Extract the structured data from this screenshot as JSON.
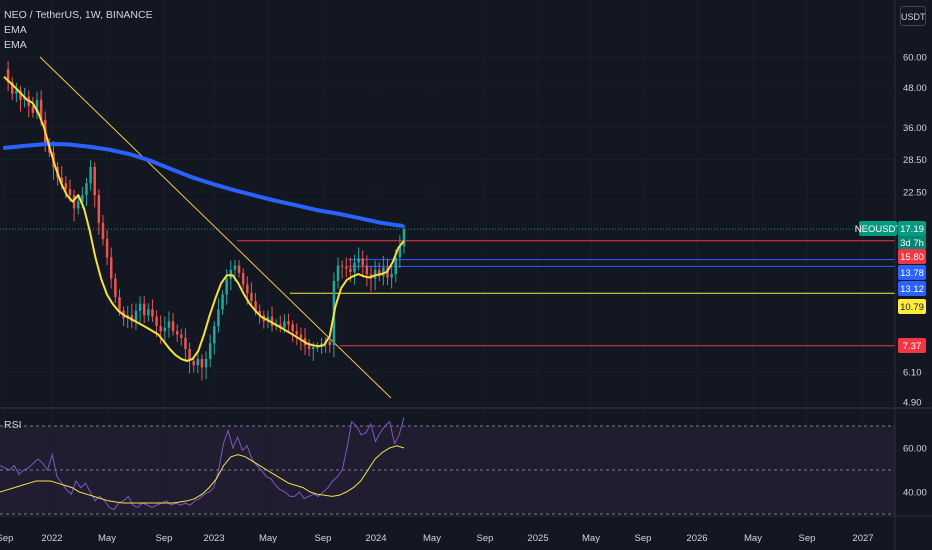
{
  "header": {
    "symbol_line": "NEO / TetherUS, 1W, BINANCE",
    "indicator_1": "EMA",
    "indicator_2": "EMA"
  },
  "currency_button": "USDT",
  "rsi_label": "RSI",
  "colors": {
    "up": "#26a69a",
    "down": "#ef5350",
    "ema_fast": "#f7e03c",
    "ema_slow": "#2962ff",
    "resistance": "#f23645",
    "support_blue": "#2962ff",
    "support_yellow": "#ffeb3b",
    "trendline": "#f5c842",
    "rsi_line": "#7e57c2",
    "rsi_ma": "#f5e050",
    "rsi_band": "#1f1d2f"
  },
  "chart_data": {
    "type": "candlestick",
    "scale": "log",
    "price_axis_ticks": [
      "60.00",
      "48.00",
      "36.00",
      "28.50",
      "22.50",
      "6.10",
      "4.90"
    ],
    "time_axis_ticks": [
      "Sep",
      "2022",
      "May",
      "Sep",
      "2023",
      "May",
      "Sep",
      "2024",
      "May",
      "Sep",
      "2025",
      "May",
      "Sep",
      "2026",
      "May",
      "Sep",
      "2027"
    ],
    "price_labels": [
      {
        "text": "NEOUSDT",
        "value": "17.19",
        "sub": "3d 7h",
        "color": "#089981"
      },
      {
        "text": "",
        "value": "15.80",
        "color": "#f23645"
      },
      {
        "text": "",
        "value": "13.78",
        "color": "#2962ff"
      },
      {
        "text": "",
        "value": "13.12",
        "color": "#2962ff"
      },
      {
        "text": "",
        "value": "10.79",
        "color": "#ffeb3b"
      },
      {
        "text": "",
        "value": "7.37",
        "color": "#f23645"
      }
    ],
    "horizontal_levels": [
      15.8,
      13.78,
      13.12,
      10.79,
      7.37
    ],
    "last_price": 17.19,
    "candle_path": [
      55,
      50,
      46,
      47,
      44,
      45,
      42,
      40,
      44,
      38,
      32,
      30,
      27,
      25,
      24,
      23,
      22,
      20,
      21,
      22,
      24,
      27,
      22,
      18,
      16,
      14,
      12,
      10.5,
      9.5,
      9,
      9.2,
      8.8,
      9.5,
      10,
      9.2,
      9.6,
      9.1,
      8.5,
      8.2,
      8.4,
      8.8,
      8.2,
      8,
      7.8,
      7.2,
      6.6,
      6.4,
      6.7,
      6.3,
      6.7,
      7.5,
      8.5,
      9.6,
      10.7,
      12,
      12.8,
      13.2,
      12.5,
      11.5,
      10.8,
      10.2,
      9.5,
      9.2,
      8.8,
      9.1,
      8.5,
      8.6,
      8.4,
      8.8,
      8.6,
      8.2,
      8,
      7.8,
      7.4,
      7.2,
      7.3,
      7.3,
      7.5,
      7.6,
      7.4,
      11.8,
      13.2,
      13.1,
      12.9,
      12.6,
      13.5,
      13.9,
      13.2,
      12.4,
      12,
      12.8,
      12.2,
      13,
      12.1,
      12.4,
      14,
      15.2,
      17.19
    ],
    "ema_fast_path": [
      52,
      50,
      48,
      46,
      44,
      43,
      40,
      36,
      31,
      27,
      24,
      22,
      21,
      22,
      20,
      17,
      14,
      12,
      10.7,
      10,
      9.5,
      9.2,
      9,
      8.8,
      8.6,
      8.4,
      8.2,
      8,
      7.6,
      7.2,
      6.9,
      6.7,
      6.6,
      6.7,
      7.1,
      8,
      9.2,
      10.4,
      11.6,
      12.3,
      12.3,
      11.6,
      10.7,
      10,
      9.5,
      9.1,
      8.9,
      8.7,
      8.5,
      8.3,
      8.1,
      7.9,
      7.7,
      7.5,
      7.4,
      7.35,
      7.4,
      7.9,
      9.8,
      11.2,
      11.9,
      12.2,
      12.4,
      12.2,
      12.1,
      12.3,
      12.4,
      12.6,
      13.5,
      15,
      15.8
    ],
    "ema_slow_path": [
      31,
      31.5,
      31.9,
      31.8,
      31.3,
      30.6,
      29.6,
      28.2,
      26.5,
      25,
      23.8,
      22.8,
      21.9,
      21.1,
      20.4,
      19.7,
      19.2,
      18.6,
      18,
      17.6
    ],
    "rsi": {
      "ticks": [
        "60.00",
        "40.00"
      ],
      "upper": 70,
      "mid": 50,
      "lower": 30,
      "values": [
        52,
        51,
        50,
        52,
        48,
        50,
        51,
        53,
        55,
        53,
        50,
        57,
        47,
        44,
        41,
        39,
        45,
        42,
        44,
        40,
        36,
        38,
        36,
        33,
        32,
        35,
        36,
        38,
        34,
        33,
        35,
        34,
        33,
        34,
        35,
        36,
        34,
        35,
        34,
        35,
        34,
        36,
        37,
        39,
        40,
        42,
        50,
        62,
        68,
        60,
        65,
        59,
        61,
        55,
        52,
        50,
        47,
        46,
        43,
        41,
        40,
        38,
        38,
        40,
        37,
        38,
        39,
        38,
        40,
        42,
        45,
        47,
        50,
        60,
        72,
        70,
        66,
        67,
        71,
        63,
        67,
        70,
        72,
        62,
        66,
        74
      ],
      "ma": [
        40,
        41,
        42,
        43,
        44,
        45,
        45,
        45,
        44,
        43,
        42,
        40,
        39,
        38,
        37,
        36,
        35.5,
        35,
        35,
        35,
        35,
        35,
        35,
        35,
        35,
        35.5,
        36,
        37,
        39,
        42,
        46,
        52,
        56,
        57,
        56,
        54,
        52,
        50,
        48,
        46,
        44,
        43,
        42,
        40,
        39,
        38.5,
        38,
        38.5,
        40,
        42,
        45,
        50,
        55,
        58,
        60,
        61,
        60
      ]
    }
  }
}
